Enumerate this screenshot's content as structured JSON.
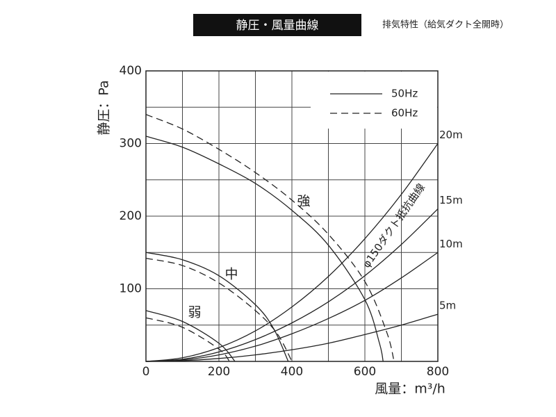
{
  "chart_data": {
    "type": "line",
    "title": "静圧・風量曲線",
    "subtitle": "排気特性（給気ダクト全開時）",
    "y_label": "静圧：Pa",
    "x_label": "風量：m³/h",
    "xlim": [
      0,
      800
    ],
    "ylim": [
      0,
      400
    ],
    "xticks": [
      0,
      200,
      400,
      600,
      800
    ],
    "yticks": [
      100,
      200,
      300,
      400
    ],
    "xgrid": [
      100,
      200,
      300,
      400,
      500,
      600,
      700
    ],
    "ygrid": [
      50,
      100,
      150,
      200,
      250,
      300,
      350
    ],
    "grid": true,
    "legend": [
      {
        "label": "50Hz",
        "line_style": "solid"
      },
      {
        "label": "60Hz",
        "line_style": "dashed"
      }
    ],
    "fan_curves": [
      {
        "label": "強",
        "curves": [
          {
            "x": [
              0,
              100,
              200,
              300,
              400,
              500,
              600,
              640,
              650
            ],
            "values": [
              310,
              295,
              272,
              245,
              208,
              160,
              85,
              25,
              0
            ]
          },
          {
            "x": [
              0,
              100,
              200,
              300,
              400,
              500,
              600,
              660,
              680
            ],
            "values": [
              340,
              320,
              292,
              260,
              222,
              175,
              110,
              40,
              0
            ]
          }
        ]
      },
      {
        "label": "中",
        "curves": [
          {
            "x": [
              0,
              100,
              200,
              300,
              350,
              390
            ],
            "values": [
              150,
              140,
              118,
              78,
              45,
              0
            ]
          },
          {
            "x": [
              0,
              100,
              200,
              300,
              360,
              400
            ],
            "values": [
              142,
              132,
              108,
              70,
              38,
              0
            ]
          }
        ]
      },
      {
        "label": "弱",
        "curves": [
          {
            "x": [
              0,
              100,
              200,
              244
            ],
            "values": [
              70,
              55,
              25,
              0
            ]
          },
          {
            "x": [
              0,
              100,
              200,
              229
            ],
            "values": [
              60,
              47,
              17,
              0
            ]
          }
        ]
      }
    ],
    "duct_curves": {
      "label": "φ150ダクト抵抗曲線",
      "x": [
        0,
        100,
        200,
        300,
        400,
        500,
        600,
        700,
        800
      ],
      "series": [
        {
          "label": "20m",
          "values": [
            0,
            5,
            19,
            42,
            75,
            117,
            169,
            230,
            300
          ]
        },
        {
          "label": "15m",
          "values": [
            0,
            3,
            13,
            30,
            53,
            82,
            118,
            161,
            210
          ]
        },
        {
          "label": "10m",
          "values": [
            0,
            2,
            9,
            21,
            38,
            59,
            84,
            115,
            150
          ]
        },
        {
          "label": "5m",
          "values": [
            0,
            1,
            4,
            9,
            16,
            25,
            37,
            50,
            65
          ]
        }
      ]
    }
  }
}
